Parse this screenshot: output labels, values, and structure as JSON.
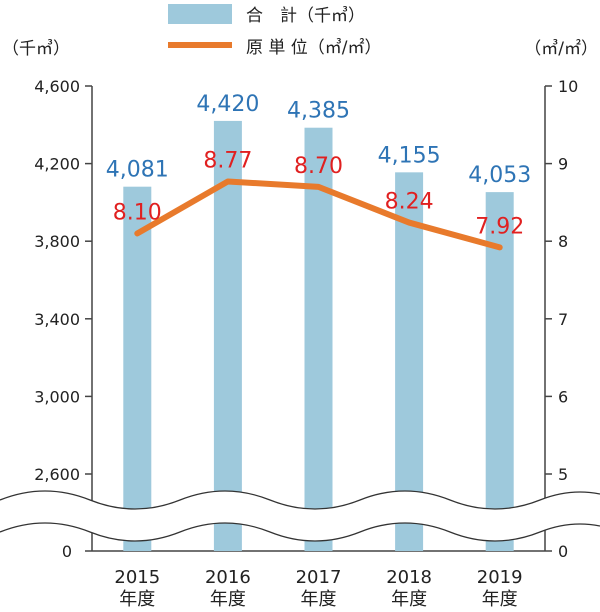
{
  "chart_data": {
    "type": "bar+line",
    "categories": [
      "2015\n年度",
      "2016\n年度",
      "2017\n年度",
      "2018\n年度",
      "2019\n年度"
    ],
    "series": [
      {
        "name": "合　計（千㎥）",
        "type": "bar",
        "axis": "left",
        "values": [
          4081,
          4420,
          4385,
          4155,
          4053
        ],
        "labels": [
          "4,081",
          "4,420",
          "4,385",
          "4,155",
          "4,053"
        ]
      },
      {
        "name": "原 単 位（㎥/㎡）",
        "type": "line",
        "axis": "right",
        "values": [
          8.1,
          8.77,
          8.7,
          8.24,
          7.92
        ],
        "labels": [
          "8.10",
          "8.77",
          "8.70",
          "8.24",
          "7.92"
        ]
      }
    ],
    "left_axis": {
      "unit": "（千㎥）",
      "ticks": [
        4600,
        4200,
        3800,
        3400,
        3000,
        2600
      ],
      "tick_labels": [
        "4,600",
        "4,200",
        "3,800",
        "3,400",
        "3,000",
        "2,600"
      ],
      "range": [
        2600,
        4600
      ],
      "break_label": "0"
    },
    "right_axis": {
      "unit": "（㎥/㎡）",
      "ticks": [
        10,
        9,
        8,
        7,
        6,
        5
      ],
      "tick_labels": [
        "10",
        "9",
        "8",
        "7",
        "6",
        "5"
      ],
      "range": [
        5,
        10
      ],
      "break_label": "0"
    },
    "axis_break": true,
    "grid": false,
    "legend_position": "top-center",
    "colors": {
      "bar": "#9ec9dc",
      "line": "#e87a2c",
      "bar_label": "#2e74b5",
      "line_label": "#e02020",
      "axis": "#333333"
    }
  }
}
